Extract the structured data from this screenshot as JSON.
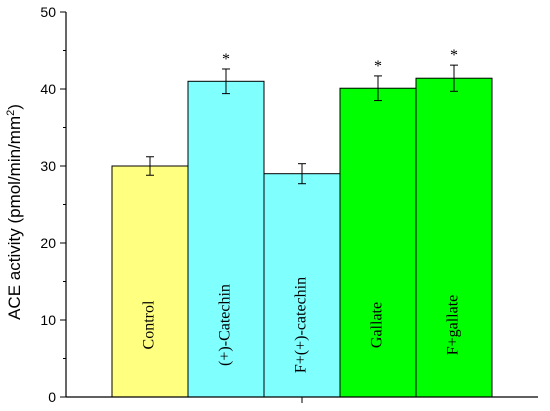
{
  "chart_data": {
    "type": "bar",
    "title": "",
    "xlabel": "",
    "ylabel": "ACE activity (pmol/min/mm",
    "ylabel_superscript": "2",
    "ylabel_close": ")",
    "ylim": [
      0,
      50
    ],
    "yticks": [
      "0",
      "10",
      "20",
      "30",
      "40",
      "50"
    ],
    "ytick_values": [
      0,
      10,
      20,
      30,
      40,
      50
    ],
    "grid": false,
    "categories": [
      "Control",
      "(+)-Catechin",
      "F+(+)-catechin",
      "Gallate",
      "F+gallate"
    ],
    "values": [
      30.0,
      41.0,
      29.0,
      40.1,
      41.4
    ],
    "errors": [
      1.2,
      1.6,
      1.3,
      1.6,
      1.7
    ],
    "significance": [
      "",
      "*",
      "",
      "*",
      "*"
    ],
    "colors": [
      "#FFFF80",
      "#80FFFF",
      "#80FFFF",
      "#00FF00",
      "#00FF00"
    ]
  }
}
